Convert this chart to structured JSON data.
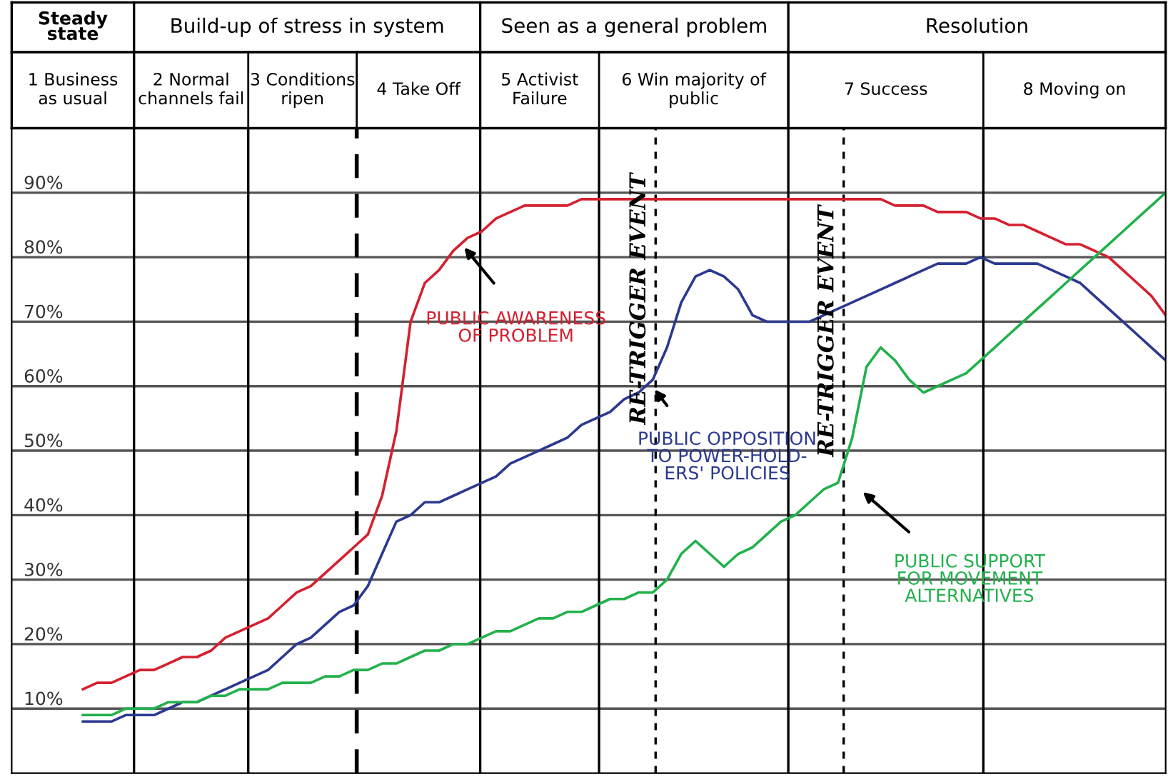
{
  "chart_data": {
    "type": "line",
    "categories": [
      null,
      null,
      null,
      null,
      null,
      null,
      null,
      null,
      null,
      null,
      null,
      null,
      null,
      null,
      null,
      null,
      null,
      null,
      null,
      null,
      null,
      null,
      null,
      null,
      null,
      null,
      null,
      null,
      null,
      null,
      null,
      null,
      null,
      null,
      null,
      null,
      null,
      null,
      null,
      null,
      null,
      null,
      null,
      null,
      null,
      null,
      null,
      null,
      null,
      null,
      null,
      null,
      null,
      null,
      null,
      null,
      null,
      null,
      null,
      null,
      null,
      null,
      null,
      null,
      null,
      null,
      null,
      null,
      null,
      null,
      null,
      null,
      null,
      null,
      null,
      null,
      null,
      null,
      null,
      null,
      null,
      null
    ],
    "ylim": [
      0,
      100
    ],
    "yticks": [
      {
        "value": 10,
        "label": "10%"
      },
      {
        "value": 20,
        "label": "20%"
      },
      {
        "value": 30,
        "label": "30%"
      },
      {
        "value": 40,
        "label": "40%"
      },
      {
        "value": 50,
        "label": "50%"
      },
      {
        "value": 60,
        "label": "60%"
      },
      {
        "value": 70,
        "label": "70%"
      },
      {
        "value": 80,
        "label": "80%"
      },
      {
        "value": 90,
        "label": "90%"
      }
    ],
    "tick_labels": "y",
    "grid": "y",
    "marker": "none",
    "line_style": "solid",
    "series": [
      {
        "color": "#d4202f",
        "values": [
          null,
          null,
          null,
          null,
          null,
          13,
          14,
          14,
          15,
          16,
          16,
          17,
          18,
          18,
          19,
          21,
          22,
          23,
          24,
          26,
          28,
          29,
          31,
          33,
          35,
          37,
          43,
          53,
          70,
          76,
          78,
          81,
          83,
          84,
          86,
          87,
          88,
          88,
          88,
          88,
          89,
          89,
          89,
          89,
          89,
          89,
          89,
          89,
          89,
          89,
          89,
          89,
          89,
          89,
          89,
          89,
          89,
          89,
          89,
          89,
          89,
          89,
          88,
          88,
          88,
          87,
          87,
          87,
          86,
          86,
          85,
          85,
          84,
          83,
          82,
          82,
          81,
          80,
          78,
          76,
          74,
          71
        ]
      },
      {
        "color": "#2b3990",
        "values": [
          null,
          null,
          null,
          null,
          null,
          8,
          8,
          8,
          9,
          9,
          9,
          10,
          11,
          11,
          12,
          13,
          14,
          15,
          16,
          18,
          20,
          21,
          23,
          25,
          26,
          29,
          34,
          39,
          40,
          42,
          42,
          43,
          44,
          45,
          46,
          48,
          49,
          50,
          51,
          52,
          54,
          55,
          56,
          58,
          59,
          61,
          66,
          73,
          77,
          78,
          77,
          75,
          71,
          70,
          70,
          70,
          70,
          71,
          72,
          73,
          74,
          75,
          76,
          77,
          78,
          79,
          79,
          79,
          80,
          79,
          79,
          79,
          79,
          78,
          77,
          76,
          74,
          72,
          70,
          68,
          66,
          64
        ]
      },
      {
        "color": "#22b14c",
        "values": [
          null,
          null,
          null,
          null,
          null,
          9,
          9,
          9,
          10,
          10,
          10,
          11,
          11,
          11,
          12,
          12,
          13,
          13,
          13,
          14,
          14,
          14,
          15,
          15,
          16,
          16,
          17,
          17,
          18,
          19,
          19,
          20,
          20,
          21,
          22,
          22,
          23,
          24,
          24,
          25,
          25,
          26,
          27,
          27,
          28,
          28,
          30,
          34,
          36,
          34,
          32,
          34,
          35,
          37,
          39,
          40,
          42,
          44,
          45,
          52,
          63,
          66,
          64,
          61,
          59,
          60,
          61,
          62,
          64,
          66,
          68,
          70,
          72,
          74,
          76,
          78,
          80,
          82,
          84,
          86,
          88,
          90
        ]
      }
    ],
    "annotations": [
      "Steady\nstate",
      "Build-up of stress in system",
      "Seen as a general problem",
      "Resolution",
      "1 Business\nas usual",
      "2 Normal\nchannels fail",
      "3 Conditions\nripen",
      "4 Take Off",
      "5 Activist\nFailure",
      "6 Win majority of\npublic",
      "7 Success",
      "8 Moving on",
      "PUBLIC AWARENESS\nOF PROBLEM",
      "PUBLIC OPPOSITION\nTO POWER-HOLD-\nERS' POLICIES",
      "PUBLIC SUPPORT\nFOR MOVEMENT\nALTERNATIVES",
      "RE-TRIGGER EVENT",
      "RE-TRIGGER EVENT"
    ]
  }
}
